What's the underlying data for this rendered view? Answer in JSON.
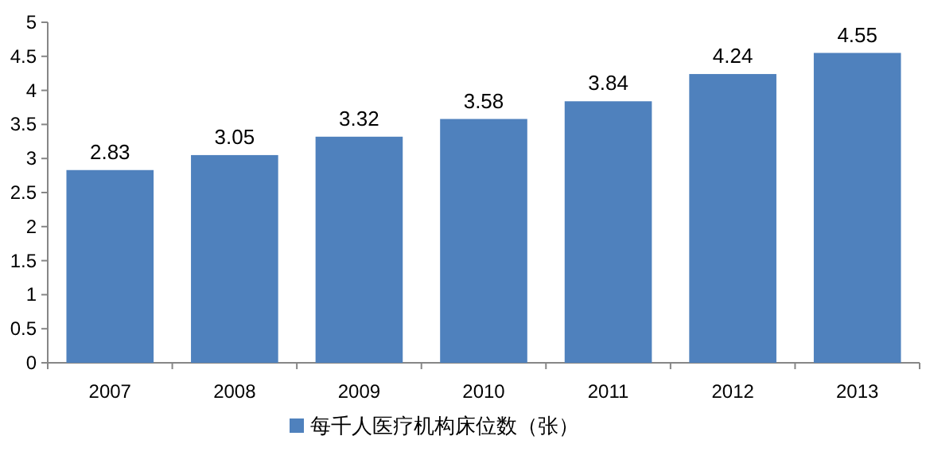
{
  "chart_data": {
    "type": "bar",
    "categories": [
      "2007",
      "2008",
      "2009",
      "2010",
      "2011",
      "2012",
      "2013"
    ],
    "series": [
      {
        "name": "每千人医疗机构床位数（张）",
        "color": "#4f81bd",
        "values": [
          2.83,
          3.05,
          3.32,
          3.58,
          3.84,
          4.24,
          4.55
        ]
      }
    ],
    "ylim": [
      0,
      5
    ],
    "yticks": [
      0,
      0.5,
      1,
      1.5,
      2,
      2.5,
      3,
      3.5,
      4,
      4.5,
      5
    ],
    "data_labels": true,
    "legend": "bottom"
  }
}
